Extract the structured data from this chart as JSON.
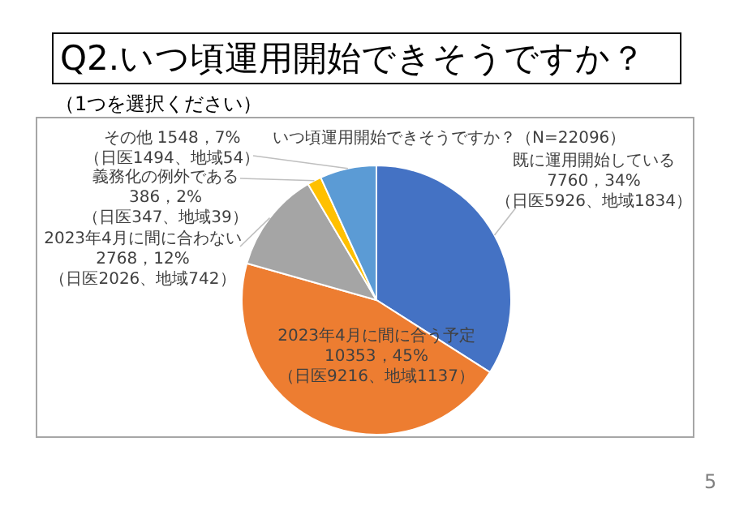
{
  "chart_data": {
    "type": "pie",
    "title": "Q2.いつ頃運用開始できそうですか？",
    "subtitle": "（1つを選択ください）",
    "annotations": [
      "いつ頃運用開始できそうですか？（N=22096）",
      "5"
    ],
    "categories": [
      "既に運用開始している",
      "2023年4月に間に合う予定",
      "2023年4月に間に合わない",
      "義務化の例外である",
      "その他"
    ],
    "values": [
      7760,
      10353,
      2768,
      386,
      1548
    ],
    "colors": [
      "#4472c4",
      "#ed7d31",
      "#a5a5a5",
      "#ffc000",
      "#5b9bd5"
    ],
    "value_labels": [
      "7760，34%\n（日医5926、地域1834）",
      "10353，45%\n（日医9216、地域1137）",
      "2768，12%\n（日医2026、地域742）",
      "386，2%\n（日医347、地域39）",
      "1548，7%\n（日医1494、地域54）"
    ]
  }
}
